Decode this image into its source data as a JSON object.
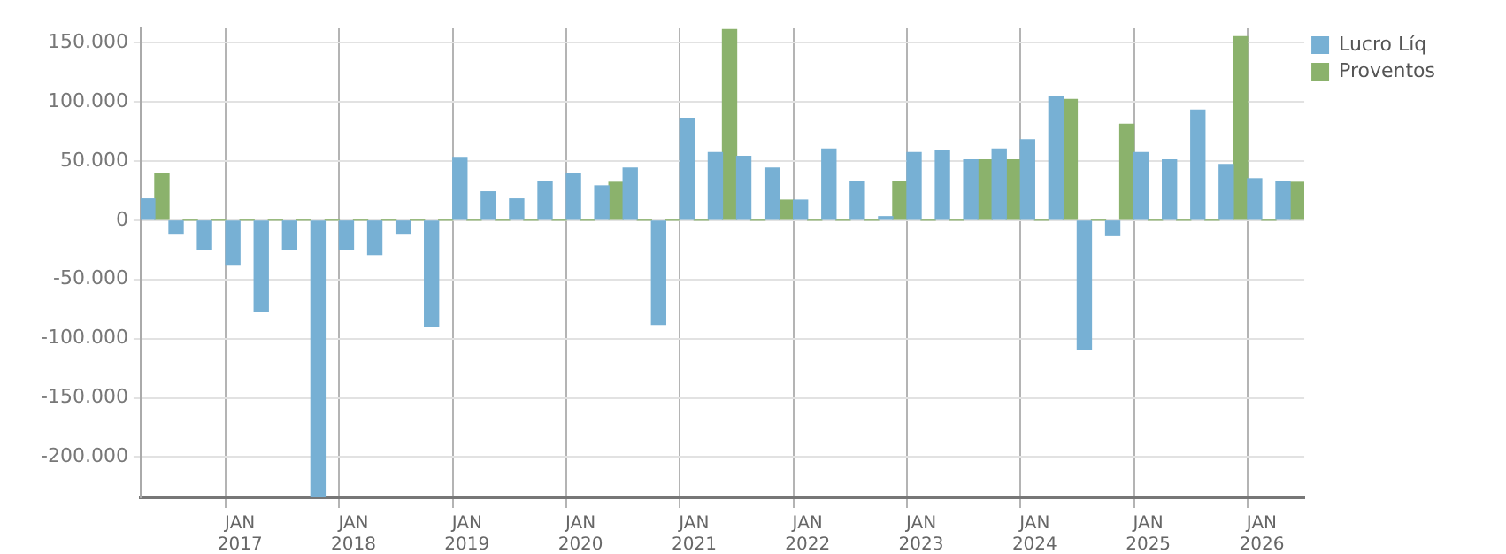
{
  "chart_data": {
    "type": "bar",
    "categories": [
      null,
      null,
      null,
      "JAN\n2017",
      null,
      null,
      null,
      "JAN\n2018",
      null,
      null,
      null,
      "JAN\n2019",
      null,
      null,
      null,
      "JAN\n2020",
      null,
      null,
      null,
      "JAN\n2021",
      null,
      null,
      null,
      "JAN\n2022",
      null,
      null,
      null,
      "JAN\n2023",
      null,
      null,
      null,
      "JAN\n2024",
      null,
      null,
      null,
      "JAN\n2025",
      null,
      null,
      null,
      "JAN\n2026",
      null
    ],
    "series": [
      {
        "name": "Lucro Líq",
        "color": "#77b0d4",
        "values": [
          18000,
          -11000,
          -25000,
          -38000,
          -77000,
          -25000,
          -234000,
          -25000,
          -29000,
          -11000,
          -90000,
          53000,
          24000,
          18000,
          33000,
          39000,
          29000,
          44000,
          -88000,
          86000,
          57000,
          54000,
          44000,
          17000,
          60000,
          33000,
          3000,
          57000,
          59000,
          51000,
          60000,
          68000,
          104000,
          -109000,
          -13000,
          57000,
          51000,
          93000,
          47000,
          35000,
          33000
        ]
      },
      {
        "name": "Proventos",
        "color": "#8bb26c",
        "values": [
          39000,
          0,
          0,
          0,
          0,
          0,
          0,
          0,
          0,
          0,
          0,
          0,
          0,
          0,
          0,
          0,
          32000,
          0,
          0,
          0,
          161000,
          0,
          17000,
          0,
          0,
          0,
          33000,
          0,
          0,
          51000,
          51000,
          0,
          102000,
          0,
          81000,
          0,
          0,
          0,
          155000,
          0,
          32000
        ]
      }
    ],
    "ylim": [
      -234000,
      162000
    ],
    "yticks": [
      {
        "value": -200000,
        "label": "-200.000"
      },
      {
        "value": -150000,
        "label": "-150.000"
      },
      {
        "value": -100000,
        "label": "-100.000"
      },
      {
        "value": -50000,
        "label": "-50.000"
      },
      0,
      {
        "value": 50000,
        "label": "50.000"
      },
      {
        "value": 100000,
        "label": "100.000"
      },
      {
        "value": 150000,
        "label": "150.000"
      }
    ],
    "grid": true,
    "legend": "top right"
  }
}
